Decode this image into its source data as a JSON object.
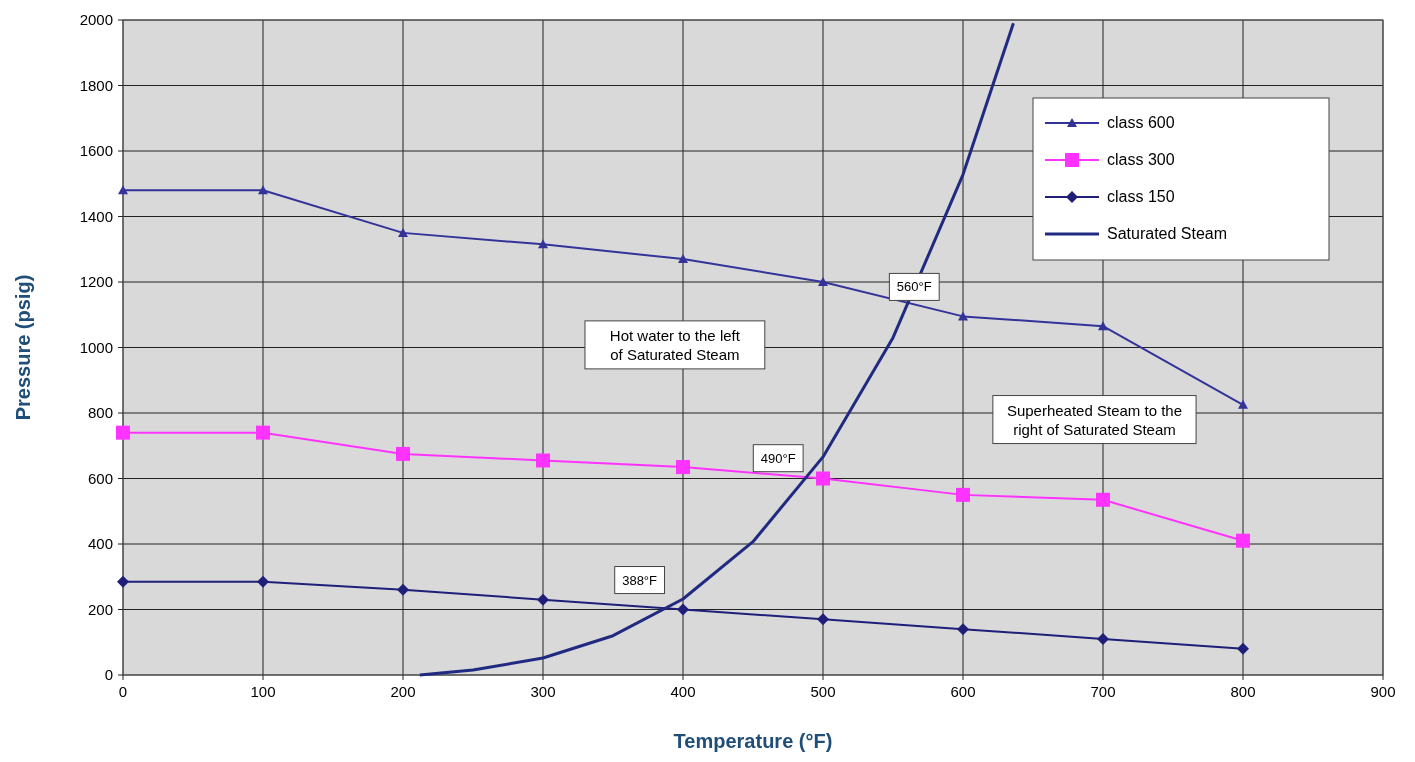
{
  "chart_data": {
    "type": "line",
    "xlabel": "Temperature (°F)",
    "ylabel": "Pressure (psig)",
    "xlim": [
      0,
      900
    ],
    "xticks": [
      0,
      100,
      200,
      300,
      400,
      500,
      600,
      700,
      800,
      900
    ],
    "ylim": [
      0,
      2000
    ],
    "yticks": [
      0,
      200,
      400,
      600,
      800,
      1000,
      1200,
      1400,
      1600,
      1800,
      2000
    ],
    "grid": true,
    "legend": "top right",
    "series": [
      {
        "name": "class 600",
        "color": "#333399",
        "marker": "triangle",
        "x": [
          0,
          100,
          200,
          300,
          400,
          500,
          600,
          700,
          800
        ],
        "values": [
          1480,
          1480,
          1350,
          1315,
          1270,
          1200,
          1095,
          1065,
          825
        ]
      },
      {
        "name": "class 300",
        "color": "#ff33ff",
        "marker": "square",
        "x": [
          0,
          100,
          200,
          300,
          400,
          500,
          600,
          700,
          800
        ],
        "values": [
          740,
          740,
          675,
          655,
          635,
          600,
          550,
          535,
          410
        ]
      },
      {
        "name": "class 150",
        "color": "#1f1f7a",
        "marker": "diamond",
        "x": [
          0,
          100,
          200,
          300,
          400,
          500,
          600,
          700,
          800
        ],
        "values": [
          285,
          285,
          260,
          230,
          200,
          170,
          140,
          110,
          80
        ]
      },
      {
        "name": "Saturated Steam",
        "color": "#1f2a80",
        "marker": "none",
        "x": [
          212,
          250,
          300,
          350,
          400,
          450,
          500,
          550,
          600,
          636
        ],
        "values": [
          0,
          15,
          52,
          120,
          232,
          407,
          666,
          1030,
          1528,
          1990
        ]
      }
    ],
    "annotations": [
      "560°F",
      "490°F",
      "388°F",
      "Hot water to the left\nof Saturated Steam",
      "Superheated Steam to the\nright of Saturated Steam"
    ]
  }
}
